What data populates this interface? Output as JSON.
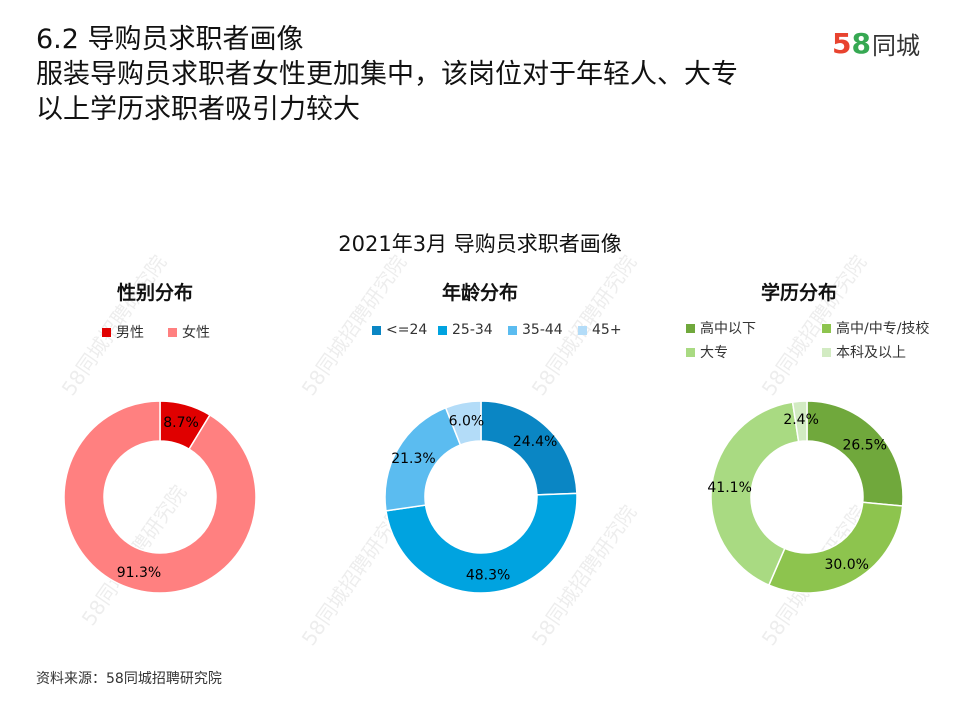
{
  "header": {
    "line1": "6.2 导购员求职者画像",
    "line2": "服装导购员求职者女性更加集中，该岗位对于年轻人、大专",
    "line3": "以上学历求职者吸引力较大"
  },
  "logo": {
    "d1": "5",
    "d2": "8",
    "brand": "同城"
  },
  "watermark": "58同城招聘研究院",
  "source": "资料来源：58同城招聘研究院",
  "colors": {
    "male": "#e00000",
    "female": "#ff8080",
    "age1": "#0a86c4",
    "age2": "#00a3e0",
    "age3": "#5bbcf0",
    "age4": "#b3dcf8",
    "edu1": "#70a83c",
    "edu2": "#8dc44e",
    "edu3": "#a9da82",
    "edu4": "#d2ebc2"
  },
  "chart_data": {
    "title": "2021年3月  导购员求职者画像",
    "charts": [
      {
        "type": "pie",
        "title": "性别分布",
        "labels": [
          "男性",
          "女性"
        ],
        "values": [
          8.7,
          91.3
        ],
        "value_labels": [
          "8.7%",
          "91.3%"
        ],
        "colors": [
          "#e00000",
          "#ff8080"
        ]
      },
      {
        "type": "pie",
        "title": "年龄分布",
        "labels": [
          "<=24",
          "25-34",
          "35-44",
          "45+"
        ],
        "values": [
          24.4,
          48.3,
          21.3,
          6.0
        ],
        "value_labels": [
          "24.4%",
          "48.3%",
          "21.3%",
          "6.0%"
        ],
        "colors": [
          "#0a86c4",
          "#00a3e0",
          "#5bbcf0",
          "#b3dcf8"
        ]
      },
      {
        "type": "pie",
        "title": "学历分布",
        "labels": [
          "高中以下",
          "高中/中专/技校",
          "大专",
          "本科及以上"
        ],
        "values": [
          26.5,
          30.0,
          41.1,
          2.4
        ],
        "value_labels": [
          "26.5%",
          "30.0%",
          "41.1%",
          "2.4%"
        ],
        "colors": [
          "#70a83c",
          "#8dc44e",
          "#a9da82",
          "#d2ebc2"
        ]
      }
    ]
  }
}
